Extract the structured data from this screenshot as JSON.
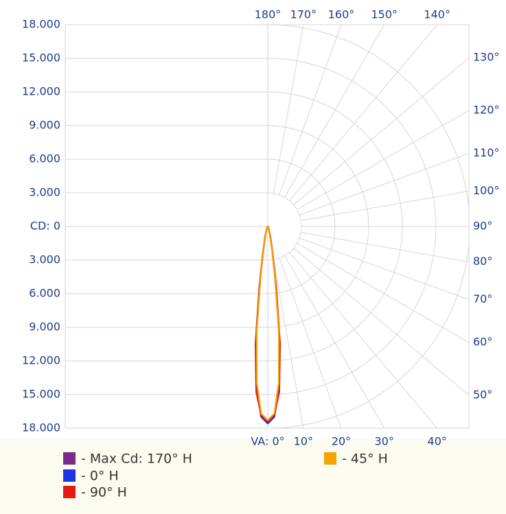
{
  "chart_data": {
    "type": "polar",
    "rlim": [
      0,
      18000
    ],
    "upper_ticks": [
      {
        "value": 18000,
        "label": "18.000"
      },
      {
        "value": 15000,
        "label": "15.000"
      },
      {
        "value": 12000,
        "label": "12.000"
      },
      {
        "value": 9000,
        "label": "9.000"
      },
      {
        "value": 6000,
        "label": "6.000"
      },
      {
        "value": 3000,
        "label": "3.000"
      },
      {
        "value": 0,
        "label": "CD: 0"
      }
    ],
    "lower_ticks": [
      {
        "value": 3000,
        "label": "3.000"
      },
      {
        "value": 6000,
        "label": "6.000"
      },
      {
        "value": 9000,
        "label": "9.000"
      },
      {
        "value": 12000,
        "label": "12.000"
      },
      {
        "value": 15000,
        "label": "15.000"
      },
      {
        "value": 18000,
        "label": "18.000"
      }
    ],
    "angle_ticks": [
      {
        "value": 0,
        "label": "VA: 0°"
      },
      {
        "value": 10,
        "label": "10°"
      },
      {
        "value": 20,
        "label": "20°"
      },
      {
        "value": 30,
        "label": "30°"
      },
      {
        "value": 40,
        "label": "40°"
      },
      {
        "value": 50,
        "label": "50°"
      },
      {
        "value": 60,
        "label": "60°"
      },
      {
        "value": 70,
        "label": "70°"
      },
      {
        "value": 80,
        "label": "80°"
      },
      {
        "value": 90,
        "label": "90°"
      },
      {
        "value": 100,
        "label": "100°"
      },
      {
        "value": 110,
        "label": "110°"
      },
      {
        "value": 120,
        "label": "120°"
      },
      {
        "value": 130,
        "label": "130°"
      },
      {
        "value": 140,
        "label": "140°"
      },
      {
        "value": 150,
        "label": "150°"
      },
      {
        "value": 160,
        "label": "160°"
      },
      {
        "value": 170,
        "label": "170°"
      },
      {
        "value": 180,
        "label": "180°"
      }
    ],
    "angles": [
      0,
      2,
      4,
      6,
      8,
      10,
      15,
      20,
      30,
      45,
      90
    ],
    "series": [
      {
        "name": "- Max Cd: 170° H",
        "color": "#7a2a8c",
        "values": [
          17600,
          17000,
          14500,
          10000,
          5000,
          2500,
          800,
          300,
          100,
          50,
          0
        ]
      },
      {
        "name": "- 0° H",
        "color": "#1a34e6",
        "values": [
          17500,
          16900,
          14300,
          9800,
          4800,
          2400,
          750,
          280,
          90,
          40,
          0
        ]
      },
      {
        "name": "- 90° H",
        "color": "#e41a14",
        "values": [
          17400,
          16800,
          14800,
          10500,
          5400,
          2700,
          900,
          350,
          120,
          60,
          0
        ]
      },
      {
        "name": "- 45° H",
        "color": "#f5a300",
        "values": [
          17300,
          16700,
          14000,
          9500,
          4600,
          2300,
          700,
          260,
          80,
          40,
          0
        ]
      }
    ]
  }
}
